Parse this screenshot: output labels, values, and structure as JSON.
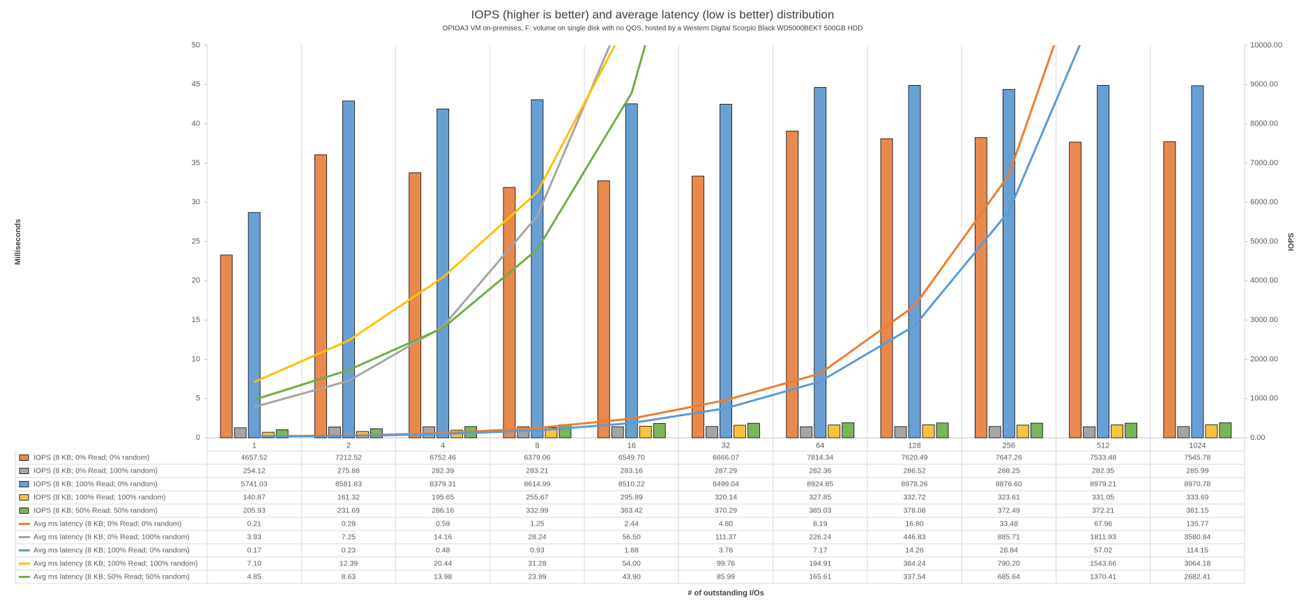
{
  "chart_data": {
    "type": "combo",
    "title": "IOPS (higher is better) and average latency (low is better) distribution",
    "subtitle": "OPIOA3 VM on-premises, F: volume on single disk with no QOS, hosted by a Western Digital Scorpio Black WD5000BEKT 500GB HDD",
    "x_label": "# of outstanding I/Os",
    "y_label": "Milliseconds",
    "y2_label": "IOPS",
    "categories": [
      "1",
      "2",
      "4",
      "8",
      "16",
      "32",
      "64",
      "128",
      "256",
      "512",
      "1024"
    ],
    "ylim": [
      0,
      50
    ],
    "yticks": [
      0,
      5,
      10,
      15,
      20,
      25,
      30,
      35,
      40,
      45,
      50
    ],
    "y2lim": [
      0,
      10000
    ],
    "y2ticks": [
      {
        "value": 0,
        "label": "0.00"
      },
      {
        "value": 1000,
        "label": "1000.00"
      },
      {
        "value": 2000,
        "label": "2000.00"
      },
      {
        "value": 3000,
        "label": "3000.00"
      },
      {
        "value": 4000,
        "label": "4000.00"
      },
      {
        "value": 5000,
        "label": "5000.00"
      },
      {
        "value": 6000,
        "label": "6000.00"
      },
      {
        "value": 7000,
        "label": "7000.00"
      },
      {
        "value": 8000,
        "label": "8000.00"
      },
      {
        "value": 9000,
        "label": "9000.00"
      },
      {
        "value": 10000,
        "label": "10000.00"
      }
    ],
    "series": [
      {
        "name": "IOPS (8 KB; 0% Read; 0% random)",
        "type": "bar",
        "axis": "y2",
        "color": "#e8894e",
        "values": [
          4657.52,
          7212.52,
          6752.46,
          6379.06,
          6549.7,
          6666.07,
          7814.34,
          7620.49,
          7647.26,
          7533.48,
          7545.78
        ],
        "value_labels": [
          "4657.52",
          "7212.52",
          "6752.46",
          "6379.06",
          "6549.70",
          "6666.07",
          "7814.34",
          "7620.49",
          "7647.26",
          "7533.48",
          "7545.78"
        ]
      },
      {
        "name": "IOPS (8 KB; 0% Read; 100% random)",
        "type": "bar",
        "axis": "y2",
        "color": "#a5a5a5",
        "values": [
          254.12,
          275.88,
          282.39,
          283.21,
          283.16,
          287.29,
          282.36,
          286.52,
          288.25,
          282.35,
          285.99
        ],
        "value_labels": [
          "254.12",
          "275.88",
          "282.39",
          "283.21",
          "283.16",
          "287.29",
          "282.36",
          "286.52",
          "288.25",
          "282.35",
          "285.99"
        ]
      },
      {
        "name": "IOPS (8 KB; 100% Read; 0% random)",
        "type": "bar",
        "axis": "y2",
        "color": "#6a9fd4",
        "values": [
          5741.03,
          8581.83,
          8379.31,
          8614.99,
          8510.22,
          8499.04,
          8924.85,
          8978.26,
          8876.6,
          8979.21,
          8970.78
        ],
        "value_labels": [
          "5741.03",
          "8581.83",
          "8379.31",
          "8614.99",
          "8510.22",
          "8499.04",
          "8924.85",
          "8978.26",
          "8876.60",
          "8979.21",
          "8970.78"
        ]
      },
      {
        "name": "IOPS (8 KB; 100% Read; 100% random)",
        "type": "bar",
        "axis": "y2",
        "color": "#f5c342",
        "values": [
          140.87,
          161.32,
          195.65,
          255.67,
          295.89,
          320.14,
          327.85,
          332.72,
          323.61,
          331.05,
          333.69
        ],
        "value_labels": [
          "140.87",
          "161.32",
          "195.65",
          "255.67",
          "295.89",
          "320.14",
          "327.85",
          "332.72",
          "323.61",
          "331.05",
          "333.69"
        ]
      },
      {
        "name": "IOPS (8 KB; 50% Read; 50% random)",
        "type": "bar",
        "axis": "y2",
        "color": "#7ab55c",
        "values": [
          205.93,
          231.69,
          286.16,
          332.99,
          363.42,
          370.29,
          385.03,
          378.08,
          372.49,
          372.21,
          381.15
        ],
        "value_labels": [
          "205.93",
          "231.69",
          "286.16",
          "332.99",
          "363.42",
          "370.29",
          "385.03",
          "378.08",
          "372.49",
          "372.21",
          "381.15"
        ]
      },
      {
        "name": "Avg ms latency (8 KB; 0% Read; 0% random)",
        "type": "line",
        "axis": "y",
        "color": "#ed7d31",
        "values": [
          0.21,
          0.28,
          0.59,
          1.25,
          2.44,
          4.8,
          8.19,
          16.8,
          33.48,
          67.96,
          135.77
        ],
        "value_labels": [
          "0.21",
          "0.28",
          "0.59",
          "1.25",
          "2.44",
          "4.80",
          "8.19",
          "16.80",
          "33.48",
          "67.96",
          "135.77"
        ]
      },
      {
        "name": "Avg ms latency (8 KB; 0% Read; 100% random)",
        "type": "line",
        "axis": "y",
        "color": "#a5a5a5",
        "values": [
          3.93,
          7.25,
          14.16,
          28.24,
          56.5,
          111.37,
          226.24,
          446.83,
          885.71,
          1811.93,
          3580.84
        ],
        "value_labels": [
          "3.93",
          "7.25",
          "14.16",
          "28.24",
          "56.50",
          "111.37",
          "226.24",
          "446.83",
          "885.71",
          "1811.93",
          "3580.84"
        ]
      },
      {
        "name": "Avg ms latency (8 KB; 100% Read; 0% random)",
        "type": "line",
        "axis": "y",
        "color": "#5b9bd5",
        "values": [
          0.17,
          0.23,
          0.48,
          0.93,
          1.88,
          3.76,
          7.17,
          14.26,
          28.84,
          57.02,
          114.15
        ],
        "value_labels": [
          "0.17",
          "0.23",
          "0.48",
          "0.93",
          "1.88",
          "3.76",
          "7.17",
          "14.26",
          "28.84",
          "57.02",
          "114.15"
        ]
      },
      {
        "name": "Avg ms latency (8 KB; 100% Read; 100% random)",
        "type": "line",
        "axis": "y",
        "color": "#ffc000",
        "values": [
          7.1,
          12.39,
          20.44,
          31.28,
          54.0,
          99.76,
          194.91,
          384.24,
          790.2,
          1543.66,
          3064.18
        ],
        "value_labels": [
          "7.10",
          "12.39",
          "20.44",
          "31.28",
          "54.00",
          "99.76",
          "194.91",
          "384.24",
          "790.20",
          "1543.66",
          "3064.18"
        ]
      },
      {
        "name": "Avg ms latency (8 KB; 50% Read; 50% random)",
        "type": "line",
        "axis": "y",
        "color": "#70ad47",
        "values": [
          4.85,
          8.63,
          13.98,
          23.99,
          43.9,
          85.99,
          165.61,
          337.54,
          685.64,
          1370.41,
          2682.41
        ],
        "value_labels": [
          "4.85",
          "8.63",
          "13.98",
          "23.99",
          "43.90",
          "85.99",
          "165.61",
          "337.54",
          "685.64",
          "1370.41",
          "2682.41"
        ]
      }
    ]
  }
}
